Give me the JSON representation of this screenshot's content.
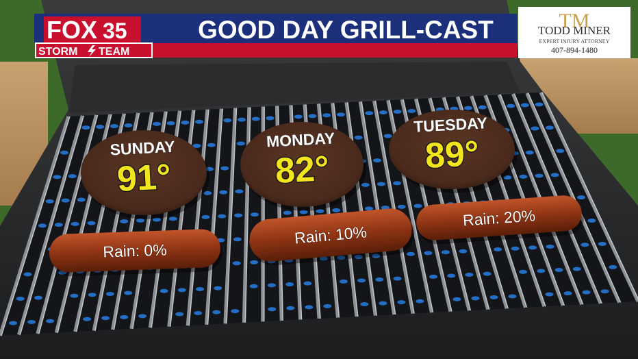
{
  "header": {
    "logo": {
      "brand": "FOX",
      "channel": "35",
      "team_left": "STORM",
      "team_right": "TEAM"
    },
    "title": "GOOD DAY GRILL-CAST"
  },
  "sponsor": {
    "monogram": "TM",
    "name": "TODD MINER",
    "tagline": "EXPERT INJURY ATTORNEY",
    "phone": "407-894-1480"
  },
  "days": [
    {
      "day": "SUNDAY",
      "temp": "91°",
      "rain": "Rain: 0%"
    },
    {
      "day": "MONDAY",
      "temp": "82°",
      "rain": "Rain: 10%"
    },
    {
      "day": "TUESDAY",
      "temp": "89°",
      "rain": "Rain: 20%"
    }
  ]
}
